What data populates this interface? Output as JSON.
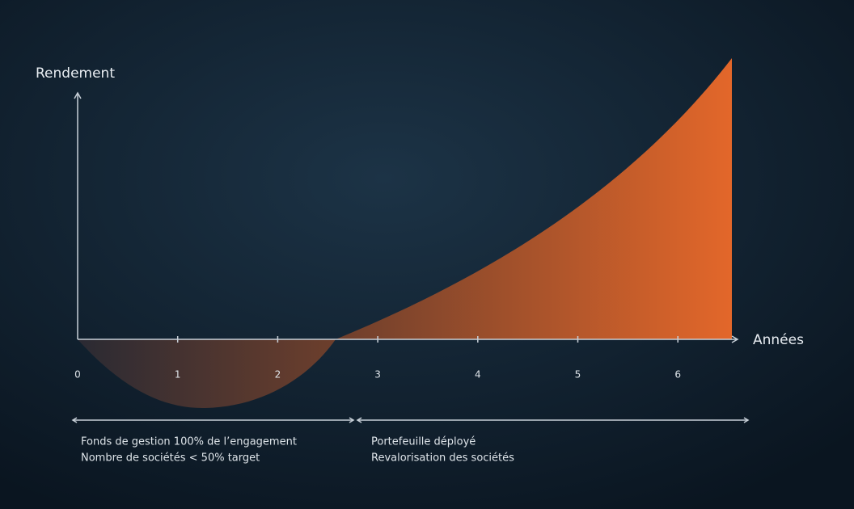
{
  "y_axis_label": "Rendement",
  "x_axis_label": "Années",
  "x_ticks": [
    "0",
    "1",
    "2",
    "3",
    "4",
    "5",
    "6"
  ],
  "phases": [
    {
      "lines": [
        "Fonds de gestion 100% de l’engagement",
        "Nombre de sociétés  < 50% target"
      ]
    },
    {
      "lines": [
        "Portefeuille déployé",
        "Revalorisation des sociétés"
      ]
    }
  ]
}
